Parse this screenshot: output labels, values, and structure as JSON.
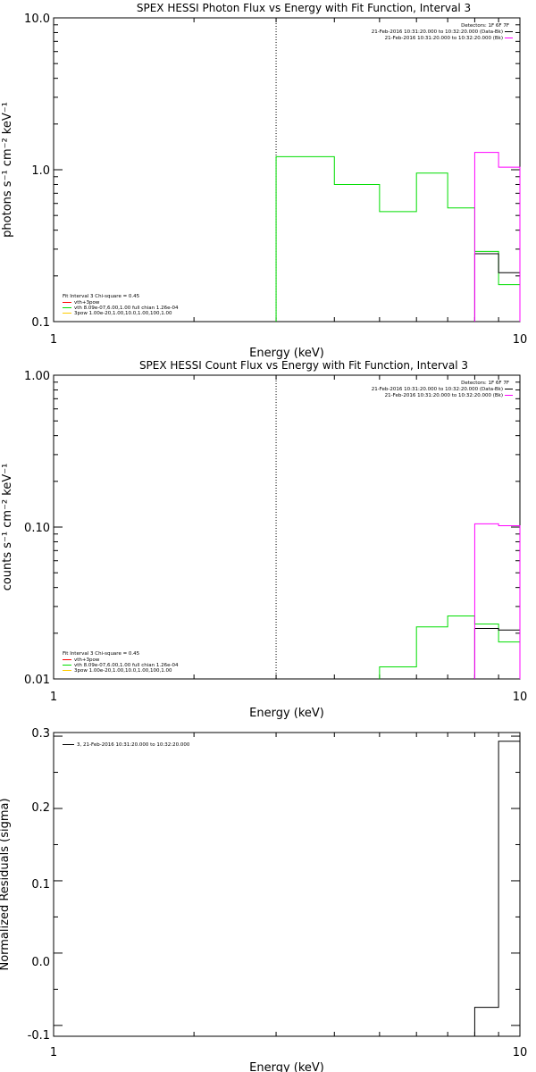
{
  "charts": [
    {
      "title": "SPEX HESSI Photon Flux vs Energy with Fit Function, Interval 3",
      "xlabel": "Energy (keV)",
      "ylabel": "photons s⁻¹ cm⁻² keV⁻¹",
      "x_ticks": [
        "1",
        "10"
      ],
      "y_ticks": [
        "0.1",
        "1.0",
        "10.0"
      ],
      "legend_right": [
        "Detectors: 1F 6F 7F",
        "21-Feb-2016 10:31:20.000 to 10:32:20.000 (Data-Bk)",
        "21-Feb-2016 10:31:20.000 to 10:32:20.000 (Bk)"
      ],
      "legend_left": [
        "Fit Interval 3   Chi-square = 0.45",
        "vth+3pow",
        "vth 8.09e-07,6.00,1.00  full chian 1.26e-04",
        "3pow 1.00e-20,1.00,10.0,1.00,100,1.00"
      ]
    },
    {
      "title": "SPEX HESSI Count Flux vs Energy with Fit Function, Interval 3",
      "xlabel": "Energy (keV)",
      "ylabel": "counts s⁻¹ cm⁻² keV⁻¹",
      "x_ticks": [
        "1",
        "10"
      ],
      "y_ticks": [
        "0.01",
        "0.10",
        "1.00"
      ],
      "legend_right": [
        "Detectors: 1F 6F 7F",
        "21-Feb-2016 10:31:20.000 to 10:32:20.000 (Data-Bk)",
        "21-Feb-2016 10:31:20.000 to 10:32:20.000 (Bk)"
      ],
      "legend_left": [
        "Fit Interval 3   Chi-square = 0.45",
        "vth+3pow",
        "vth 8.09e-07,6.00,1.00  full chian 1.26e-04",
        "3pow 1.00e-20,1.00,10.0,1.00,100,1.00"
      ]
    },
    {
      "title": "",
      "xlabel": "Energy (keV)",
      "ylabel": "Normalized Residuals (sigma)",
      "x_ticks": [
        "1",
        "10"
      ],
      "y_ticks": [
        "-0.1",
        "0.0",
        "0.1",
        "0.2",
        "0.3"
      ],
      "legend_left": [
        "3, 21-Feb-2016 10:31:20.000 to 10:32:20.000"
      ]
    }
  ],
  "colors": {
    "data": "#000000",
    "bk": "#ff00ff",
    "fit_total": "#ff0000",
    "fit_vth": "#00dd00",
    "fit_pow": "#ffcc00"
  },
  "chart_data": [
    {
      "type": "line",
      "title": "SPEX HESSI Photon Flux vs Energy with Fit Function, Interval 3",
      "xlabel": "Energy (keV)",
      "ylabel": "photons s⁻¹ cm⁻² keV⁻¹",
      "xscale": "log",
      "yscale": "log",
      "xlim": [
        1,
        10
      ],
      "ylim": [
        0.1,
        10
      ],
      "fit_low_keV": 3.0,
      "series": [
        {
          "name": "vth",
          "color": "#00dd00",
          "edges": [
            3.0,
            4.0,
            5.0,
            6.0,
            7.0,
            8.0,
            9.0,
            10.0
          ],
          "values": [
            1.22,
            0.8,
            0.53,
            0.95,
            0.56,
            0.29,
            0.175
          ]
        },
        {
          "name": "Data-Bk",
          "color": "#000000",
          "edges": [
            8.0,
            9.0,
            10.0
          ],
          "values": [
            0.28,
            0.21
          ]
        },
        {
          "name": "Bk",
          "color": "#ff00ff",
          "edges": [
            8.0,
            9.0,
            10.0
          ],
          "values": [
            1.3,
            1.04
          ]
        }
      ]
    },
    {
      "type": "line",
      "title": "SPEX HESSI Count Flux vs Energy with Fit Function, Interval 3",
      "xlabel": "Energy (keV)",
      "ylabel": "counts s⁻¹ cm⁻² keV⁻¹",
      "xscale": "log",
      "yscale": "log",
      "xlim": [
        1,
        10
      ],
      "ylim": [
        0.01,
        1.0
      ],
      "fit_low_keV": 3.0,
      "series": [
        {
          "name": "vth",
          "color": "#00dd00",
          "edges": [
            5.0,
            6.0,
            7.0,
            8.0,
            9.0,
            10.0
          ],
          "values": [
            0.012,
            0.022,
            0.026,
            0.023,
            0.0175
          ]
        },
        {
          "name": "Data-Bk",
          "color": "#000000",
          "edges": [
            8.0,
            9.0,
            10.0
          ],
          "values": [
            0.0215,
            0.021
          ]
        },
        {
          "name": "Bk",
          "color": "#ff00ff",
          "edges": [
            8.0,
            9.0,
            10.0
          ],
          "values": [
            0.105,
            0.102
          ]
        }
      ]
    },
    {
      "type": "line",
      "title": "",
      "xlabel": "Energy (keV)",
      "ylabel": "Normalized Residuals (sigma)",
      "xscale": "log",
      "yscale": "linear",
      "xlim": [
        1,
        10
      ],
      "ylim": [
        -0.115,
        0.305
      ],
      "series": [
        {
          "name": "3, 21-Feb-2016 10:31:20.000 to 10:32:20.000",
          "color": "#000000",
          "edges": [
            8.0,
            9.0,
            10.0
          ],
          "values": [
            -0.075,
            0.293
          ]
        }
      ]
    }
  ]
}
